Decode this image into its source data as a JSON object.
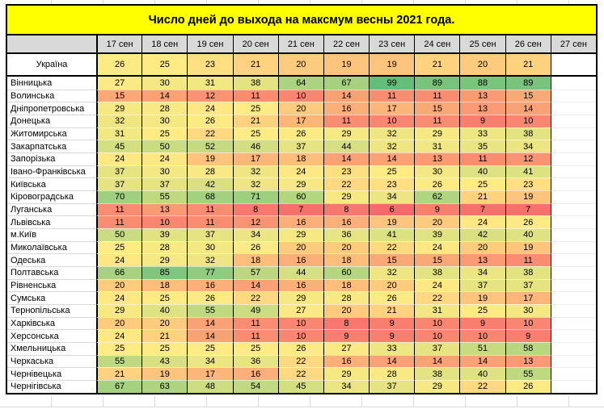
{
  "chart_data": {
    "type": "heatmap",
    "title": "Число дней до выхода на максмум весны 2021 года.",
    "corner_label": "",
    "columns": [
      "17 сен",
      "18 сен",
      "19 сен",
      "20 сен",
      "21 сен",
      "22 сен",
      "23 сен",
      "24 сен",
      "25 сен",
      "26 сен",
      "27 сен"
    ],
    "summary_row": {
      "name": "Україна",
      "values": [
        26,
        25,
        23,
        21,
        20,
        19,
        19,
        21,
        20,
        21,
        null
      ]
    },
    "rows": [
      {
        "name": "Вінницька",
        "values": [
          27,
          30,
          31,
          38,
          64,
          67,
          99,
          89,
          88,
          89,
          null
        ]
      },
      {
        "name": "Волинська",
        "values": [
          15,
          14,
          12,
          11,
          10,
          14,
          11,
          11,
          13,
          15,
          null
        ]
      },
      {
        "name": "Дніпропетровська",
        "values": [
          29,
          28,
          24,
          25,
          20,
          16,
          17,
          15,
          13,
          14,
          null
        ]
      },
      {
        "name": "Донецька",
        "values": [
          32,
          30,
          26,
          21,
          17,
          11,
          10,
          11,
          9,
          10,
          null
        ]
      },
      {
        "name": "Житомирська",
        "values": [
          31,
          25,
          22,
          25,
          26,
          29,
          32,
          29,
          33,
          38,
          null
        ]
      },
      {
        "name": "Закарпатська",
        "values": [
          45,
          50,
          52,
          46,
          37,
          44,
          32,
          31,
          35,
          34,
          null
        ]
      },
      {
        "name": "Запорізька",
        "values": [
          24,
          24,
          19,
          17,
          18,
          14,
          14,
          13,
          11,
          12,
          null
        ]
      },
      {
        "name": "Івано-Франківська",
        "values": [
          37,
          30,
          28,
          32,
          24,
          23,
          25,
          30,
          40,
          41,
          null
        ]
      },
      {
        "name": "Київська",
        "values": [
          37,
          37,
          42,
          32,
          29,
          22,
          23,
          26,
          25,
          23,
          null
        ]
      },
      {
        "name": "Кіровоградська",
        "values": [
          70,
          55,
          68,
          71,
          60,
          29,
          34,
          62,
          21,
          19,
          null
        ]
      },
      {
        "name": "Луганська",
        "values": [
          11,
          13,
          11,
          8,
          7,
          8,
          6,
          9,
          7,
          7,
          null
        ]
      },
      {
        "name": "Львівська",
        "values": [
          11,
          10,
          11,
          12,
          16,
          16,
          19,
          20,
          24,
          26,
          null
        ]
      },
      {
        "name": "м.Київ",
        "values": [
          50,
          39,
          37,
          34,
          29,
          36,
          41,
          39,
          42,
          40,
          null
        ]
      },
      {
        "name": "Миколаївська",
        "values": [
          25,
          28,
          30,
          26,
          20,
          20,
          22,
          24,
          20,
          19,
          null
        ]
      },
      {
        "name": "Одеська",
        "values": [
          24,
          29,
          32,
          18,
          16,
          18,
          15,
          15,
          13,
          11,
          null
        ]
      },
      {
        "name": "Полтавська",
        "values": [
          66,
          85,
          77,
          57,
          44,
          60,
          32,
          38,
          34,
          38,
          null
        ]
      },
      {
        "name": "Рівненська",
        "values": [
          20,
          18,
          16,
          14,
          16,
          18,
          20,
          24,
          37,
          37,
          null
        ]
      },
      {
        "name": "Сумська",
        "values": [
          24,
          25,
          26,
          22,
          29,
          28,
          26,
          22,
          19,
          17,
          null
        ]
      },
      {
        "name": "Тернопільська",
        "values": [
          29,
          40,
          55,
          49,
          27,
          20,
          21,
          31,
          25,
          30,
          null
        ]
      },
      {
        "name": "Харківська",
        "values": [
          20,
          20,
          14,
          11,
          10,
          8,
          9,
          10,
          9,
          10,
          null
        ]
      },
      {
        "name": "Херсонська",
        "values": [
          24,
          21,
          14,
          11,
          10,
          9,
          9,
          10,
          10,
          9,
          null
        ]
      },
      {
        "name": "Хмельницька",
        "values": [
          25,
          25,
          25,
          25,
          26,
          27,
          33,
          37,
          51,
          58,
          null
        ]
      },
      {
        "name": "Черкаська",
        "values": [
          55,
          43,
          34,
          36,
          22,
          16,
          14,
          14,
          14,
          13,
          null
        ]
      },
      {
        "name": "Чернівецька",
        "values": [
          21,
          19,
          17,
          16,
          22,
          29,
          28,
          38,
          40,
          55,
          null
        ]
      },
      {
        "name": "Чернігівська",
        "values": [
          67,
          63,
          48,
          54,
          45,
          34,
          37,
          29,
          22,
          26,
          null
        ]
      }
    ],
    "colorscale": {
      "min_color": "#F8696B",
      "mid_color": "#FFEB84",
      "max_color": "#63BE7B",
      "min_value": 6,
      "mid_rule": "median",
      "max_value": 99
    },
    "layout": {
      "title_bg": "#FFFF00",
      "header_bg": "#D9D9D9",
      "empty_cell_bg": "#FFFFFF",
      "border_color": "#000000"
    }
  }
}
